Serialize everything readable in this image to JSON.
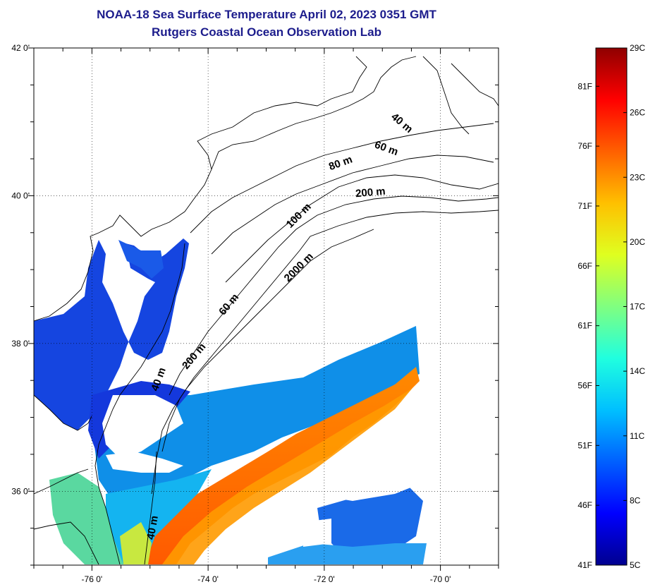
{
  "title_line1": "NOAA-18 Sea Surface Temperature April 02, 2023 0351 GMT",
  "title_line2": "Rutgers Coastal Ocean Observation Lab",
  "map": {
    "lat_labels": [
      {
        "value": 42,
        "label": "42 0'"
      },
      {
        "value": 40,
        "label": "40 0'"
      },
      {
        "value": 38,
        "label": "38 0'"
      },
      {
        "value": 36,
        "label": "36 0'"
      }
    ],
    "lon_labels": [
      {
        "value": -76,
        "label": "-76 0'"
      },
      {
        "value": -74,
        "label": "-74 0'"
      },
      {
        "value": -72,
        "label": "-72 0'"
      },
      {
        "value": -70,
        "label": "-70 0'"
      }
    ],
    "lon_range": [
      -77,
      -69
    ],
    "lat_range": [
      35,
      42
    ],
    "contour_labels": [
      {
        "text": "40 m",
        "lon": -70.7,
        "lat": 40.95,
        "angle": 40
      },
      {
        "text": "60 m",
        "lon": -70.95,
        "lat": 40.6,
        "angle": 20
      },
      {
        "text": "80 m",
        "lon": -71.7,
        "lat": 40.4,
        "angle": -20
      },
      {
        "text": "200 m",
        "lon": -71.2,
        "lat": 40.0,
        "angle": -5
      },
      {
        "text": "100 m",
        "lon": -72.4,
        "lat": 39.7,
        "angle": -45
      },
      {
        "text": "2000 m",
        "lon": -72.4,
        "lat": 39.0,
        "angle": -45
      },
      {
        "text": "60 m",
        "lon": -73.6,
        "lat": 38.5,
        "angle": -50
      },
      {
        "text": "200 m",
        "lon": -74.2,
        "lat": 37.8,
        "angle": -50
      },
      {
        "text": "40 m",
        "lon": -74.8,
        "lat": 37.5,
        "angle": -70
      },
      {
        "text": "40 m",
        "lon": -74.9,
        "lat": 35.5,
        "angle": -80
      }
    ]
  },
  "colorbar": {
    "celsius_labels": [
      {
        "value": 29,
        "label": "29C"
      },
      {
        "value": 26,
        "label": "26C"
      },
      {
        "value": 23,
        "label": "23C"
      },
      {
        "value": 20,
        "label": "20C"
      },
      {
        "value": 17,
        "label": "17C"
      },
      {
        "value": 14,
        "label": "14C"
      },
      {
        "value": 11,
        "label": "11C"
      },
      {
        "value": 8,
        "label": "8C"
      },
      {
        "value": 5,
        "label": "5C"
      }
    ],
    "fahrenheit_labels": [
      {
        "value": 81,
        "label": "81F"
      },
      {
        "value": 76,
        "label": "76F"
      },
      {
        "value": 71,
        "label": "71F"
      },
      {
        "value": 66,
        "label": "66F"
      },
      {
        "value": 61,
        "label": "61F"
      },
      {
        "value": 56,
        "label": "56F"
      },
      {
        "value": 51,
        "label": "51F"
      },
      {
        "value": 46,
        "label": "46F"
      },
      {
        "value": 41,
        "label": "41F"
      }
    ],
    "range_c": [
      5,
      29
    ],
    "colors": [
      "#00008f",
      "#0000ff",
      "#0060ff",
      "#00c0ff",
      "#20ffdf",
      "#80ff80",
      "#dfff20",
      "#ffc000",
      "#ff6000",
      "#ff0000",
      "#8f0000"
    ]
  }
}
